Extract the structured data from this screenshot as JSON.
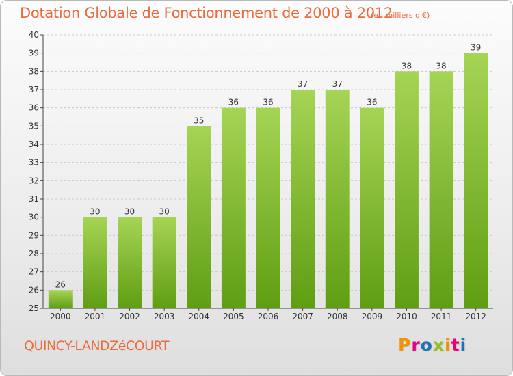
{
  "header": {
    "title": "Dotation Globale de Fonctionnement de 2000 à 2012",
    "unit_note": "(en milliers d'€)"
  },
  "footer": {
    "commune": "QUINCY-LANDZéCOURT",
    "logo_text": "Proxiti",
    "logo_colors": [
      "#f39200",
      "#e5007e",
      "#1d71b8",
      "#95c11f",
      "#f39200",
      "#e5007e",
      "#1d71b8"
    ]
  },
  "colors": {
    "bar_top": "#a6d455",
    "bar_bottom": "#5f9e12",
    "text_accent": "#ec6a3c",
    "axis": "#444444"
  },
  "chart_data": {
    "type": "bar",
    "categories": [
      "2000",
      "2001",
      "2002",
      "2003",
      "2004",
      "2005",
      "2006",
      "2007",
      "2008",
      "2009",
      "2010",
      "2011",
      "2012"
    ],
    "values": [
      26,
      30,
      30,
      30,
      35,
      36,
      36,
      37,
      37,
      36,
      38,
      38,
      39
    ],
    "data_labels": [
      "26",
      "30",
      "30",
      "30",
      "35",
      "36",
      "36",
      "37",
      "37",
      "36",
      "38",
      "38",
      "39"
    ],
    "title": "Dotation Globale de Fonctionnement de 2000 à 2012",
    "subtitle": "(en milliers d'€)",
    "xlabel": "",
    "ylabel": "",
    "ylim": [
      25,
      40
    ],
    "yticks": [
      25,
      26,
      27,
      28,
      29,
      30,
      31,
      32,
      33,
      34,
      35,
      36,
      37,
      38,
      39,
      40
    ],
    "grid": true
  }
}
